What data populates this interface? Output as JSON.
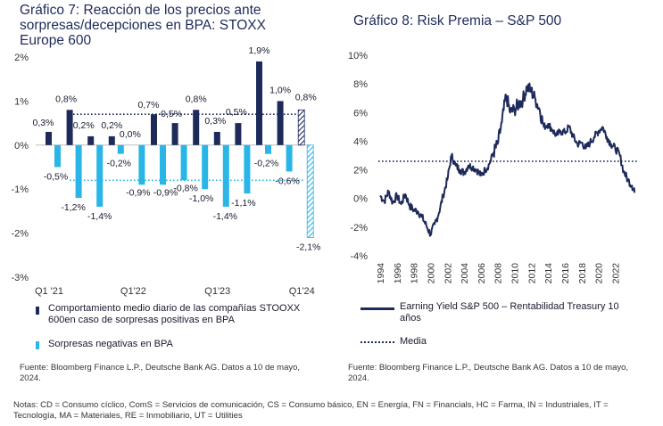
{
  "chart_data": [
    {
      "type": "bar",
      "title": "Gráfico 7: Reacción de los precios ante sorpresas/decepciones en BPA:  STOXX Europe 600",
      "ylim": [
        -3,
        2
      ],
      "y_ticks": [
        "2%",
        "1%",
        "0%",
        "-1%",
        "-2%",
        "-3%"
      ],
      "x_tick_labels": [
        {
          "label": "Q1 '21",
          "index": 0
        },
        {
          "label": "Q1'22",
          "index": 4
        },
        {
          "label": "Q1'23",
          "index": 8
        },
        {
          "label": "Q1'24",
          "index": 12
        }
      ],
      "series": [
        {
          "name": "Comportamiento medio diario de las compañías STOOXX 600en caso de sorpresas positivas en BPA",
          "color": "#1e2a5a",
          "values": [
            0.3,
            0.8,
            0.2,
            0.2,
            0.0,
            0.7,
            0.5,
            0.8,
            0.3,
            0.5,
            1.9,
            1.0,
            0.8
          ],
          "labels": [
            "0,3%",
            "0,8%",
            "0,2%",
            "0,2%",
            "0,0%",
            "0,7%",
            "0,5%",
            "0,8%",
            "0,3%",
            "0,5%",
            "1,9%",
            "1,0%",
            "0,8%"
          ]
        },
        {
          "name": "Sorpresas negativas en BPA",
          "color": "#29b6e6",
          "values": [
            -0.5,
            -1.2,
            -1.4,
            -0.2,
            -0.9,
            -0.9,
            -0.8,
            -1.0,
            -1.4,
            -1.1,
            -0.2,
            -0.6,
            -2.1
          ],
          "labels": [
            "-0,5%",
            "-1,2%",
            "-1,4%",
            "-0,2%",
            "-0,9%",
            "-0,9%",
            "-0,8%",
            "-1,0%",
            "-1,4%",
            "-1,1%",
            "-0,2%",
            "-0,6%",
            "-2,1%"
          ]
        }
      ],
      "reference_lines": [
        {
          "value": 0.7,
          "color": "#1e2a5a"
        },
        {
          "value": -0.8,
          "color": "#29b6e6"
        }
      ],
      "legend_placement": "bottom",
      "source": "Fuente: Bloomberg Finance L.P., Deutsche Bank AG. Datos a 10 de mayo, 2024."
    },
    {
      "type": "line",
      "title": "Gráfico 8: Risk Premia – S&P 500",
      "ylim": [
        -4,
        10
      ],
      "y_ticks": [
        "10%",
        "8%",
        "6%",
        "4%",
        "2%",
        "0%",
        "-2%",
        "-4%"
      ],
      "x_ticks": [
        "1994",
        "1996",
        "1998",
        "2000",
        "2002",
        "2004",
        "2006",
        "2008",
        "2010",
        "2012",
        "2014",
        "2016",
        "2018",
        "2020",
        "2022"
      ],
      "xlim": [
        1994,
        2024.5
      ],
      "series": [
        {
          "name": "Earning Yield S&P 500 – Rentabilidad Treasury 10 años",
          "color": "#1e2a5a",
          "x": [
            1994,
            1994.5,
            1995,
            1995.5,
            1996,
            1996.5,
            1997,
            1997.5,
            1998,
            1998.5,
            1999,
            1999.5,
            2000,
            2000.5,
            2001,
            2001.5,
            2002,
            2002.5,
            2003,
            2003.5,
            2004,
            2004.5,
            2005,
            2005.5,
            2006,
            2006.5,
            2007,
            2007.5,
            2008,
            2008.5,
            2009,
            2009.5,
            2010,
            2010.5,
            2011,
            2011.5,
            2012,
            2012.5,
            2013,
            2013.5,
            2014,
            2014.5,
            2015,
            2015.5,
            2016,
            2016.5,
            2017,
            2017.5,
            2018,
            2018.5,
            2019,
            2019.5,
            2020,
            2020.5,
            2021,
            2021.5,
            2022,
            2022.5,
            2023,
            2023.5,
            2024,
            2024.3
          ],
          "values": [
            0.2,
            -0.2,
            0.5,
            -0.3,
            0.2,
            -0.4,
            0.3,
            -0.5,
            -0.8,
            -0.9,
            -1.3,
            -1.9,
            -2.5,
            -1.8,
            -1.0,
            0.2,
            1.3,
            3.0,
            2.3,
            2.0,
            1.8,
            2.3,
            2.2,
            2.0,
            1.6,
            2.0,
            2.4,
            3.2,
            3.8,
            5.3,
            7.2,
            6.0,
            6.2,
            6.6,
            6.9,
            7.8,
            7.5,
            6.9,
            6.2,
            5.0,
            5.2,
            4.8,
            4.4,
            4.7,
            4.6,
            5.0,
            4.3,
            3.8,
            3.9,
            3.5,
            3.9,
            4.3,
            4.7,
            5.0,
            4.3,
            3.8,
            3.5,
            3.1,
            1.9,
            1.3,
            0.9,
            0.4
          ]
        }
      ],
      "reference_lines": [
        {
          "name": "Media",
          "value": 2.6,
          "color": "#1e2a5a"
        }
      ],
      "legend_placement": "bottom",
      "source": "Fuente: Bloomberg Finance L.P., Deutsche Bank AG. Datos a 10 de mayo, 2024."
    }
  ],
  "left_panel": {
    "title": "Gráfico 7: Reacción de los precios ante sorpresas/decepciones en BPA:  STOXX Europe 600",
    "legend_positive": "Comportamiento medio diario de las compañías STOOXX 600en caso de sorpresas positivas en BPA",
    "legend_negative": "Sorpresas negativas en BPA",
    "source": "Fuente: Bloomberg Finance L.P., Deutsche Bank AG. Datos a 10 de mayo, 2024."
  },
  "right_panel": {
    "title": "Gráfico 8: Risk Premia – S&P 500",
    "legend_line": "Earning Yield S&P 500 – Rentabilidad Treasury 10 años",
    "legend_mean": "Media",
    "source": "Fuente: Bloomberg Finance L.P., Deutsche Bank AG. Datos a 10 de mayo, 2024."
  },
  "notes": "Notas: CD = Consumo cíclico, ComS = Servicios de comunicación, CS = Consumo básico, EN = Energía, FN = Financials, HC = Farma, IN = Industriales, IT = Tecnología, MA = Materiales, RE = Inmobiliario, UT = Utilities"
}
